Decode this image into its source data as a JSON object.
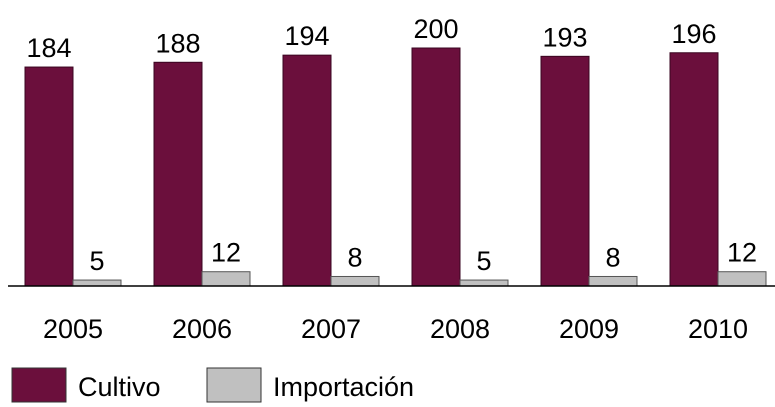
{
  "chart_data": {
    "type": "bar",
    "categories": [
      "2005",
      "2006",
      "2007",
      "2008",
      "2009",
      "2010"
    ],
    "series": [
      {
        "name": "Cultivo",
        "color": "#6b0f3c",
        "values": [
          184,
          188,
          194,
          200,
          193,
          196
        ]
      },
      {
        "name": "Importación",
        "color": "#c0c0c0",
        "values": [
          5,
          12,
          8,
          5,
          8,
          12
        ]
      }
    ],
    "legend": "bottom-left"
  }
}
